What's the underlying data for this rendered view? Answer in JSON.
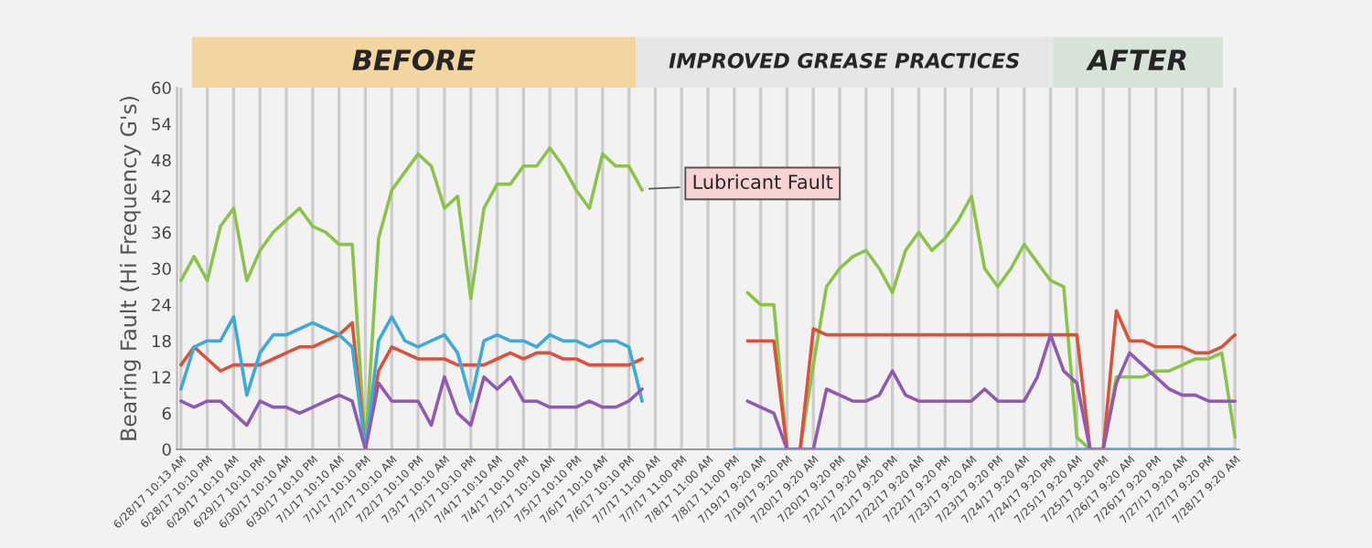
{
  "chart_data": {
    "type": "line",
    "ylabel": "Bearing Fault (Hi Frequency G's)",
    "categories": [
      "6/28/17 10:13 AM",
      null,
      "6/28/17 10:10 PM",
      null,
      "6/29/17 10:10 AM",
      null,
      "6/29/17 10:10 PM",
      null,
      "6/30/17 10:10 AM",
      null,
      "6/30/17 10:10 PM",
      null,
      "7/1/17 10:10 AM",
      null,
      "7/1/17 10:10 PM",
      null,
      "7/2/17 10:10 AM",
      null,
      "7/2/17 10:10 PM",
      null,
      "7/3/17 10:10 AM",
      null,
      "7/3/17 10:10 PM",
      null,
      "7/4/17 10:10 AM",
      null,
      "7/4/17 10:10 PM",
      null,
      "7/5/17 10:10 AM",
      null,
      "7/5/17 10:10 PM",
      null,
      "7/6/17 10:10 AM",
      null,
      "7/6/17 10:10 PM",
      null,
      "7/7/17 11:00 AM",
      null,
      "7/7/17 11:00 PM",
      null,
      "7/8/17 11:00 AM",
      null,
      "7/8/17 11:00 PM",
      null,
      "7/19/17 9:20 AM",
      null,
      "7/19/17 9:20 PM",
      null,
      "7/20/17 9:20 AM",
      null,
      "7/20/17 9:20 PM",
      null,
      "7/21/17 9:20 AM",
      null,
      "7/21/17 9:20 PM",
      null,
      "7/22/17 9:20 AM",
      null,
      "7/22/17 9:20 PM",
      null,
      "7/23/17 9:20 AM",
      null,
      "7/23/17 9:20 PM",
      null,
      "7/24/17 9:20 AM",
      null,
      "7/24/17 9:20 PM",
      null,
      "7/25/17 9:20 AM",
      null,
      "7/25/17 9:20 PM",
      null,
      "7/26/17 9:20 AM",
      null,
      "7/26/17 9:20 PM",
      null,
      "7/27/17 9:20 AM",
      null,
      "7/27/17 9:20 PM",
      null,
      "7/28/17 9:20 AM"
    ],
    "ylim": [
      0,
      60
    ],
    "yticks": [
      0,
      6,
      12,
      18,
      24,
      30,
      36,
      42,
      48,
      54,
      60
    ],
    "grid": "x",
    "series": [
      {
        "color": "#8bc34a",
        "values": [
          28,
          32,
          28,
          37,
          40,
          28,
          33,
          36,
          38,
          40,
          37,
          36,
          34,
          34,
          0,
          35,
          43,
          46,
          49,
          47,
          40,
          42,
          25,
          40,
          44,
          44,
          47,
          47,
          50,
          47,
          43,
          40,
          49,
          47,
          47,
          43,
          null,
          null,
          null,
          null,
          null,
          null,
          null,
          26,
          24,
          24,
          0,
          0,
          14,
          27,
          30,
          32,
          33,
          30,
          26,
          33,
          36,
          33,
          35,
          38,
          42,
          30,
          27,
          30,
          34,
          31,
          28,
          27,
          2,
          0,
          0,
          12,
          12,
          12,
          13,
          13,
          14,
          15,
          15,
          16,
          2
        ]
      },
      {
        "color": "#d9533c",
        "values": [
          14,
          17,
          15,
          13,
          14,
          14,
          14,
          15,
          16,
          17,
          17,
          18,
          19,
          21,
          0,
          13,
          17,
          16,
          15,
          15,
          15,
          14,
          14,
          14,
          15,
          16,
          15,
          16,
          16,
          15,
          15,
          14,
          14,
          14,
          14,
          15,
          null,
          null,
          null,
          null,
          null,
          null,
          null,
          18,
          18,
          18,
          0,
          0,
          20,
          19,
          19,
          19,
          19,
          19,
          19,
          19,
          19,
          19,
          19,
          19,
          19,
          19,
          19,
          19,
          19,
          19,
          19,
          19,
          19,
          0,
          0,
          23,
          18,
          18,
          17,
          17,
          17,
          16,
          16,
          17,
          19
        ]
      },
      {
        "color": "#3fa9d8",
        "values": [
          10,
          17,
          18,
          18,
          22,
          9,
          16,
          19,
          19,
          20,
          21,
          20,
          19,
          17,
          0,
          18,
          22,
          18,
          17,
          18,
          19,
          16,
          8,
          18,
          19,
          18,
          18,
          17,
          19,
          18,
          18,
          17,
          18,
          18,
          17,
          8,
          null,
          null,
          null,
          null,
          null,
          null,
          0,
          0,
          0,
          0,
          0,
          0,
          0,
          0,
          0,
          0,
          0,
          0,
          0,
          0,
          0,
          0,
          0,
          0,
          0,
          0,
          0,
          0,
          0,
          0,
          0,
          0,
          0,
          0,
          0,
          0,
          0,
          0,
          0,
          0,
          0,
          0,
          0,
          0,
          0
        ]
      },
      {
        "color": "#8e5bb0",
        "values": [
          8,
          7,
          8,
          8,
          6,
          4,
          8,
          7,
          7,
          6,
          7,
          8,
          9,
          8,
          0,
          11,
          8,
          8,
          8,
          4,
          12,
          6,
          4,
          12,
          10,
          12,
          8,
          8,
          7,
          7,
          7,
          8,
          7,
          7,
          8,
          10,
          null,
          null,
          null,
          null,
          null,
          null,
          null,
          8,
          7,
          6,
          0,
          0,
          0,
          10,
          9,
          8,
          8,
          9,
          13,
          9,
          8,
          8,
          8,
          8,
          8,
          10,
          8,
          8,
          8,
          12,
          19,
          13,
          11,
          0,
          0,
          11,
          16,
          14,
          12,
          10,
          9,
          9,
          8,
          8,
          8
        ]
      }
    ],
    "annotations": [
      "BEFORE",
      "IMPROVED GREASE PRACTICES",
      "AFTER",
      "Lubricant Fault"
    ]
  }
}
